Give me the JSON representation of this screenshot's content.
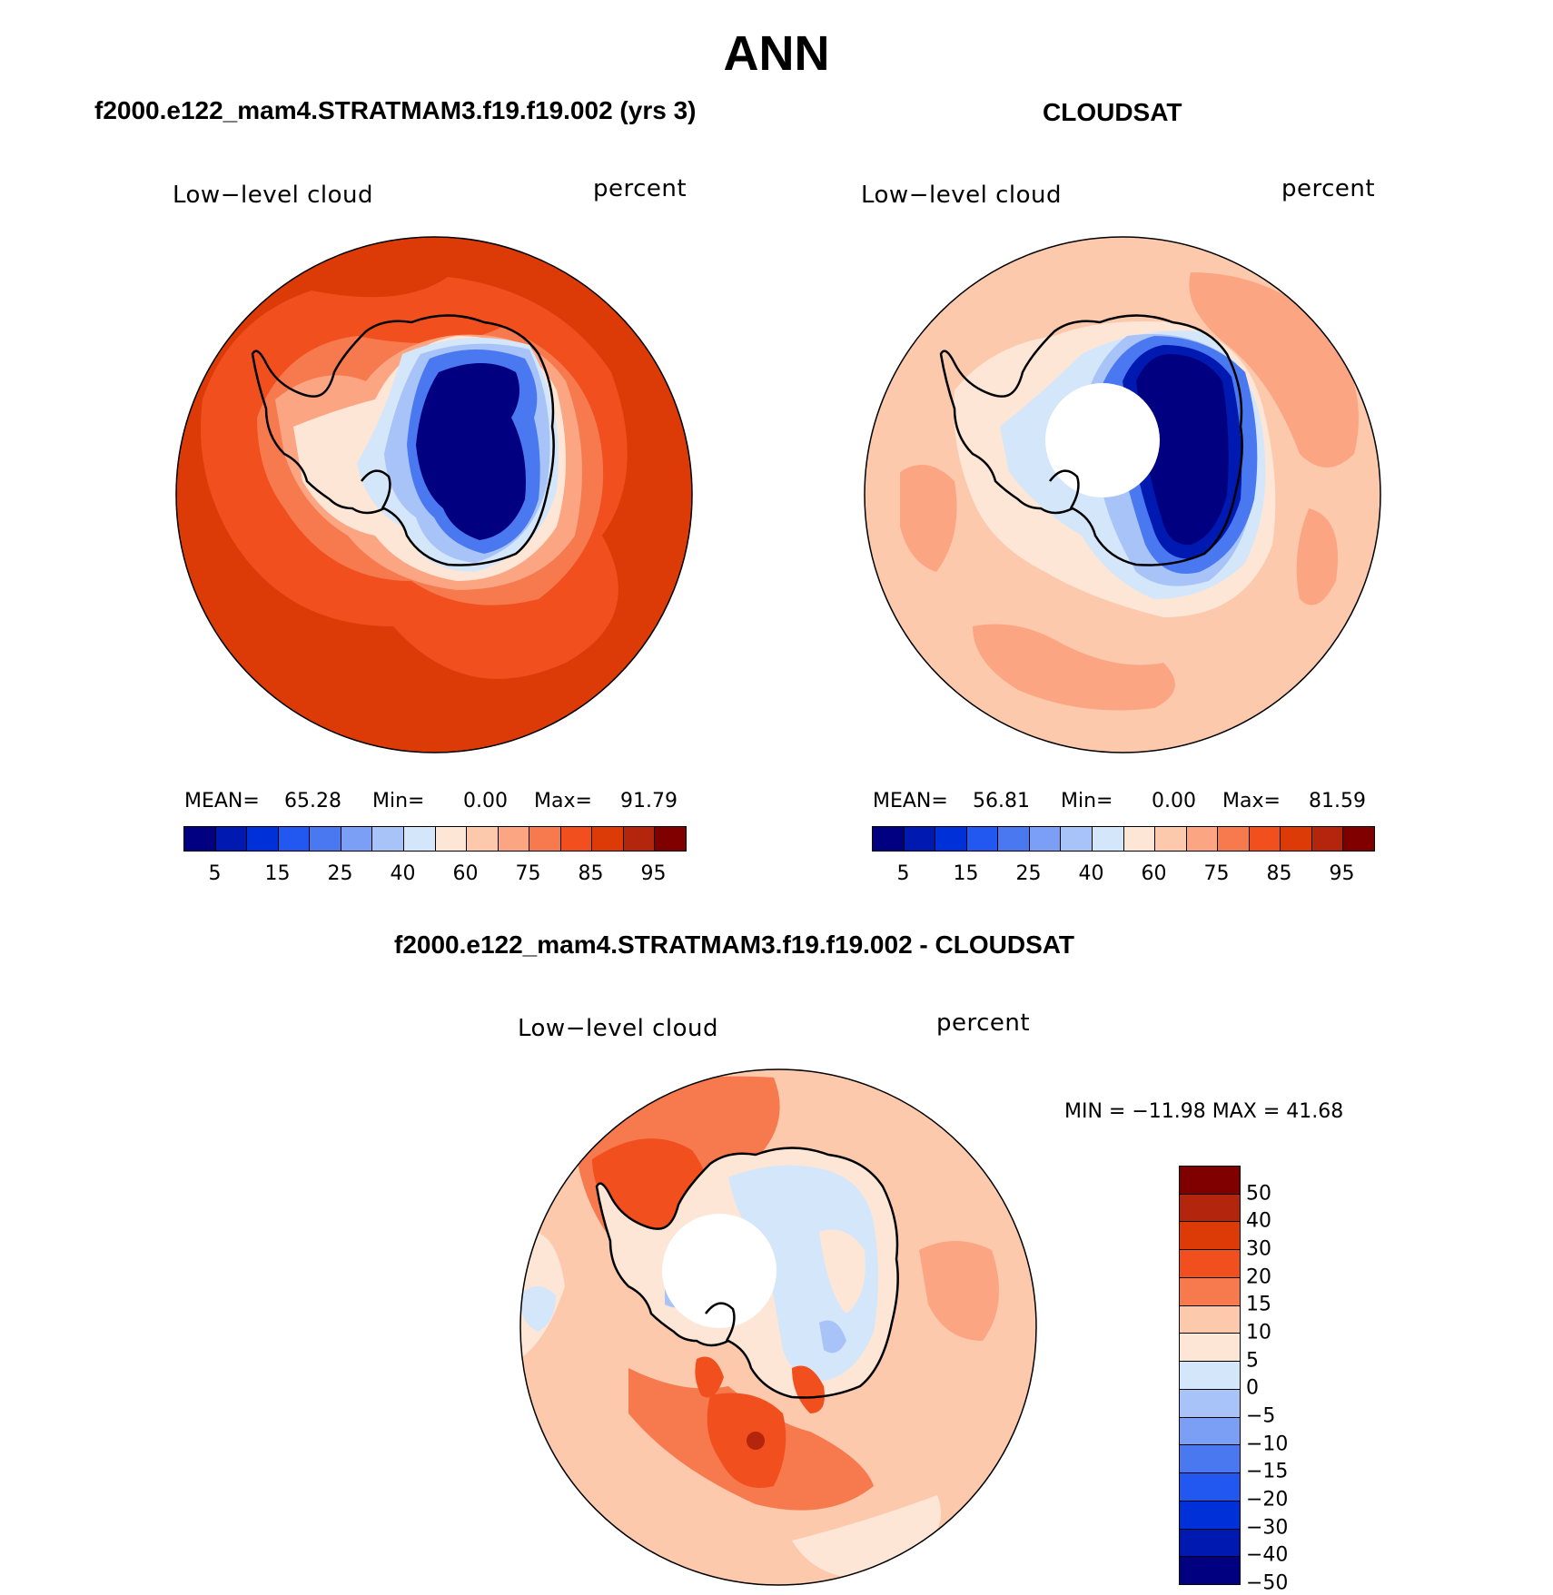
{
  "title": "ANN",
  "panels": {
    "model": {
      "title": "f2000.e122_mam4.STRATMAM3.f19.f19.002 (yrs 3)",
      "variable": "Low−level cloud",
      "units": "percent",
      "stats": {
        "mean_label": "MEAN=",
        "mean": "65.28",
        "min_label": "Min=",
        "min": "0.00",
        "max_label": "Max=",
        "max": "91.79"
      }
    },
    "obs": {
      "title": "CLOUDSAT",
      "variable": "Low−level cloud",
      "units": "percent",
      "stats": {
        "mean_label": "MEAN=",
        "mean": "56.81",
        "min_label": "Min=",
        "min": "0.00",
        "max_label": "Max=",
        "max": "81.59"
      }
    },
    "diff": {
      "title": "f2000.e122_mam4.STRATMAM3.f19.f19.002 - CLOUDSAT",
      "variable": "Low−level cloud",
      "units": "percent",
      "range_text": "MIN = −11.98 MAX =   41.68"
    }
  },
  "colorbars": {
    "abs": {
      "colors": [
        "#000080",
        "#0019b0",
        "#0030d8",
        "#2257f0",
        "#4a78f0",
        "#7a9ff5",
        "#a8c3f7",
        "#d4e6fa",
        "#fde6d6",
        "#fcc9ad",
        "#fba583",
        "#f77a4e",
        "#f24f1e",
        "#dc3a07",
        "#b3250c",
        "#800000"
      ],
      "labels": [
        "5",
        "15",
        "25",
        "40",
        "60",
        "75",
        "85",
        "95"
      ]
    },
    "diff": {
      "colors": [
        "#800000",
        "#b3250c",
        "#dc3a07",
        "#f24f1e",
        "#f77a4e",
        "#fcc9ad",
        "#fde6d6",
        "#d4e6fa",
        "#a8c3f7",
        "#7a9ff5",
        "#4a78f0",
        "#2257f0",
        "#0030d8",
        "#0019b0",
        "#000080"
      ],
      "labels": [
        "50",
        "40",
        "30",
        "20",
        "15",
        "10",
        "5",
        "0",
        "−5",
        "−10",
        "−15",
        "−20",
        "−30",
        "−40",
        "−50"
      ]
    }
  }
}
